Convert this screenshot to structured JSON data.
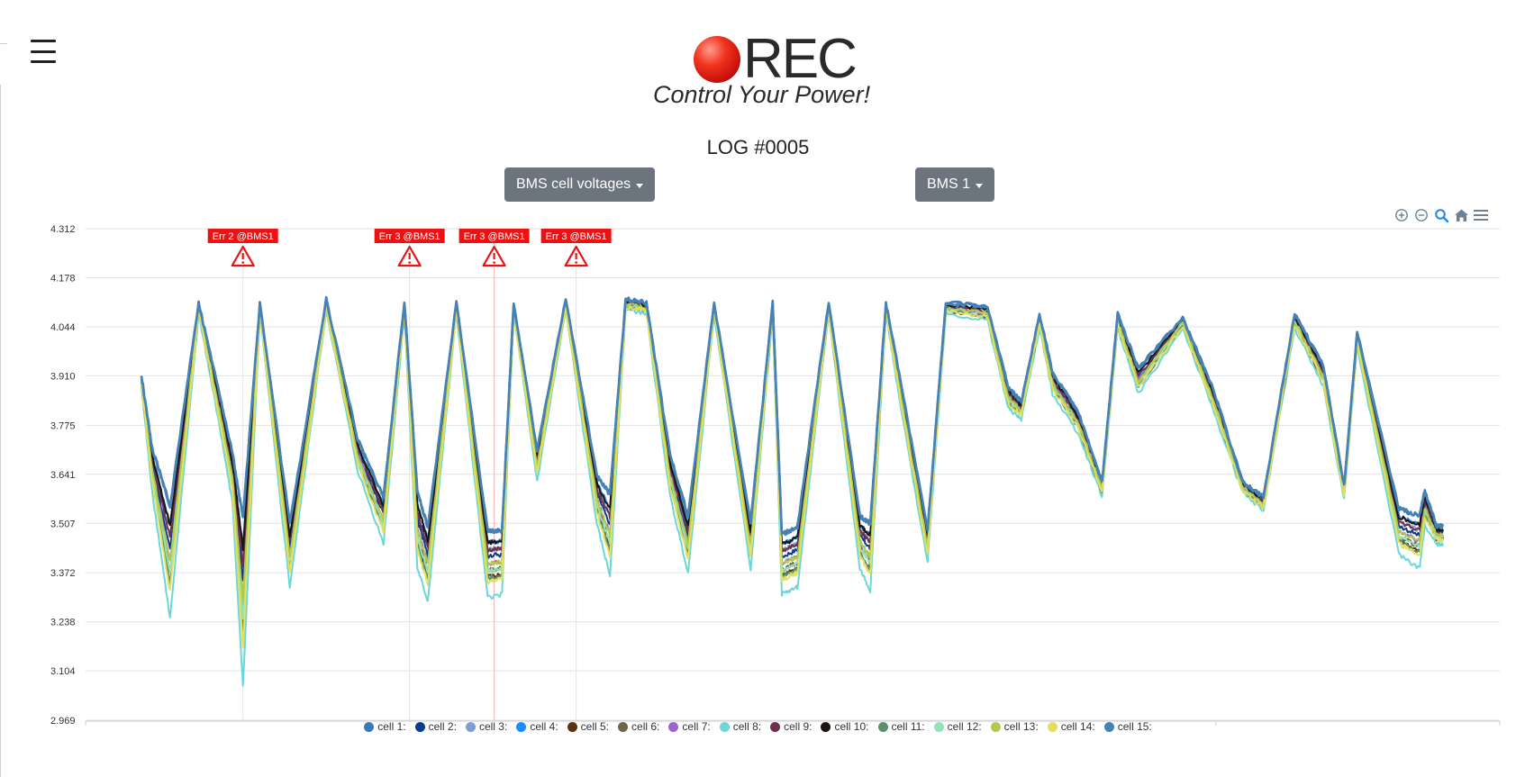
{
  "app": {
    "logo_text": "REC",
    "tagline": "Control Your Power!",
    "log_title": "LOG #0005"
  },
  "controls": {
    "measurement_select": "BMS cell voltages",
    "bms_select": "BMS 1"
  },
  "icons": {
    "menu": "hamburger-icon",
    "zoom_in": "zoom-in-icon",
    "zoom_out": "zoom-out-icon",
    "zoom_select": "magnifier-icon",
    "reset": "home-icon",
    "export_menu": "menu-icon"
  },
  "colors": {
    "button_bg": "#6c757d",
    "annotation_red": "#ee1111",
    "grid": "#e2e2e2"
  },
  "chart_data": {
    "type": "line",
    "title": "",
    "xlabel": "",
    "ylabel": "",
    "y_ticks": [
      "4.312",
      "4.178",
      "4.044",
      "3.910",
      "3.775",
      "3.641",
      "3.507",
      "3.372",
      "3.238",
      "3.104",
      "2.969"
    ],
    "ylim": [
      2.969,
      4.312
    ],
    "xlim": [
      0,
      1000
    ],
    "grid": true,
    "legend_position": "bottom",
    "annotations": [
      {
        "label": "Err 2 @BMS1",
        "x": 78
      },
      {
        "label": "Err 3 @BMS1",
        "x": 206
      },
      {
        "label": "Err 3 @BMS1",
        "x": 271
      },
      {
        "label": "Err 3 @BMS1",
        "x": 334
      }
    ],
    "envelope": {
      "x": [
        0,
        8,
        22,
        44,
        60,
        70,
        78,
        91,
        114,
        142,
        166,
        186,
        202,
        212,
        220,
        242,
        266,
        277,
        286,
        304,
        326,
        350,
        360,
        372,
        388,
        406,
        420,
        440,
        468,
        485,
        492,
        504,
        528,
        552,
        560,
        572,
        582,
        604,
        618,
        650,
        666,
        676,
        690,
        700,
        720,
        738,
        750,
        766,
        800,
        824,
        846,
        862,
        886,
        908,
        924,
        934,
        966,
        982,
        986,
        995,
        1000
      ],
      "high": [
        3.91,
        3.72,
        3.56,
        4.11,
        3.86,
        3.7,
        3.53,
        4.11,
        3.51,
        4.12,
        3.74,
        3.58,
        4.11,
        3.6,
        3.5,
        4.11,
        3.49,
        3.49,
        4.11,
        3.71,
        4.12,
        3.64,
        3.59,
        4.12,
        4.11,
        3.7,
        3.53,
        4.11,
        3.51,
        4.11,
        3.48,
        3.5,
        4.11,
        3.53,
        3.51,
        4.11,
        3.92,
        3.49,
        4.11,
        4.1,
        3.88,
        3.84,
        4.08,
        3.92,
        3.81,
        3.62,
        4.08,
        3.93,
        4.07,
        3.87,
        3.62,
        3.58,
        4.08,
        3.94,
        3.61,
        4.03,
        3.55,
        3.53,
        3.6,
        3.5,
        3.5
      ],
      "low": [
        3.88,
        3.6,
        3.24,
        4.08,
        3.77,
        3.56,
        3.05,
        4.08,
        3.33,
        4.09,
        3.65,
        3.45,
        4.08,
        3.38,
        3.29,
        4.08,
        3.3,
        3.31,
        4.08,
        3.62,
        4.09,
        3.5,
        3.36,
        4.09,
        4.08,
        3.58,
        3.37,
        4.08,
        3.38,
        4.08,
        3.31,
        3.33,
        4.08,
        3.38,
        3.32,
        4.08,
        3.85,
        3.4,
        4.08,
        4.06,
        3.82,
        3.79,
        4.04,
        3.86,
        3.75,
        3.58,
        4.04,
        3.86,
        4.04,
        3.81,
        3.59,
        3.54,
        4.04,
        3.88,
        3.57,
        3.99,
        3.42,
        3.38,
        3.5,
        3.45,
        3.45
      ]
    },
    "series": [
      {
        "name": "cell 1:",
        "color": "#3d7ab5"
      },
      {
        "name": "cell 2:",
        "color": "#0b3d8c"
      },
      {
        "name": "cell 3:",
        "color": "#7e9fd0"
      },
      {
        "name": "cell 4:",
        "color": "#1a8cff"
      },
      {
        "name": "cell 5:",
        "color": "#5c3310"
      },
      {
        "name": "cell 6:",
        "color": "#6d6648"
      },
      {
        "name": "cell 7:",
        "color": "#9a67c8"
      },
      {
        "name": "cell 8:",
        "color": "#6dd6d6"
      },
      {
        "name": "cell 9:",
        "color": "#6e3050"
      },
      {
        "name": "cell 10:",
        "color": "#1b1410"
      },
      {
        "name": "cell 11:",
        "color": "#5e8f6c"
      },
      {
        "name": "cell 12:",
        "color": "#96e2b8"
      },
      {
        "name": "cell 13:",
        "color": "#b2c950"
      },
      {
        "name": "cell 14:",
        "color": "#e3df5f"
      },
      {
        "name": "cell 15:",
        "color": "#4682b4"
      }
    ]
  }
}
